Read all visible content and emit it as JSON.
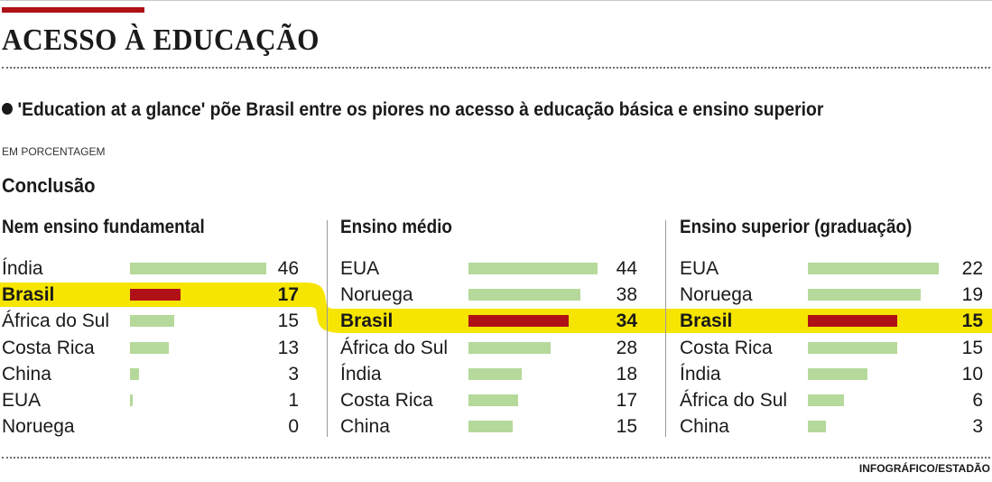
{
  "header": {
    "title": "ACESSO À EDUCAÇÃO",
    "subtitle": "'Education at a glance' põe Brasil entre os piores no acesso à educação básica e ensino superior",
    "unit": "EM PORCENTAGEM",
    "section": "Conclusão"
  },
  "credit": "INFOGRÁFICO/ESTADÃO",
  "colors": {
    "accent": "#b01116",
    "bar": "#b5d99a",
    "highlight_bar": "#b01116",
    "highlight_band": "#f6e500"
  },
  "chart_data": [
    {
      "type": "bar",
      "title": "Nem ensino fundamental",
      "categories": [
        "Índia",
        "Brasil",
        "África do Sul",
        "Costa Rica",
        "China",
        "EUA",
        "Noruega"
      ],
      "values": [
        46,
        17,
        15,
        13,
        3,
        1,
        0
      ],
      "highlight": "Brasil",
      "xlim": [
        0,
        46
      ]
    },
    {
      "type": "bar",
      "title": "Ensino médio",
      "categories": [
        "EUA",
        "Noruega",
        "Brasil",
        "África do Sul",
        "Índia",
        "Costa Rica",
        "China"
      ],
      "values": [
        44,
        38,
        34,
        28,
        18,
        17,
        15
      ],
      "highlight": "Brasil",
      "xlim": [
        0,
        44
      ]
    },
    {
      "type": "bar",
      "title": "Ensino superior (graduação)",
      "categories": [
        "EUA",
        "Noruega",
        "Brasil",
        "Costa Rica",
        "Índia",
        "África do Sul",
        "China"
      ],
      "values": [
        22,
        19,
        15,
        15,
        10,
        6,
        3
      ],
      "highlight": "Brasil",
      "xlim": [
        0,
        22
      ]
    }
  ]
}
